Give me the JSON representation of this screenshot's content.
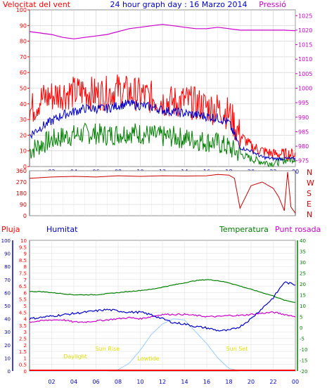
{
  "header": {
    "wind_label": "Velocitat del vent",
    "title": "24 hour graph day : 16 Marzo 2014",
    "pressure_label": "Pressió"
  },
  "lower_header": {
    "rain_label": "Pluja",
    "humidity_label": "Humitat",
    "temperature_label": "Temperatura",
    "dewpoint_label": "Punt rosada"
  },
  "colors": {
    "wind_gust": "#ff0000",
    "wind_avg": "#0000cc",
    "wind_min": "#008000",
    "pressure": "#cc00cc",
    "direction": "#cc0000",
    "humidity": "#0000cc",
    "temperature": "#008000",
    "dewpoint": "#cc00cc",
    "solar": "#99ccff",
    "rain": "#ff0000",
    "sun_labels": "#e0e000"
  },
  "chart_data": [
    {
      "type": "line",
      "name": "wind_pressure",
      "x_ticks": [
        "02",
        "04",
        "06",
        "08",
        "10",
        "12",
        "14",
        "16",
        "18",
        "20",
        "22",
        "00"
      ],
      "y_left_ticks": [
        "0",
        "10",
        "20",
        "30",
        "40",
        "50",
        "60",
        "70",
        "80",
        "90",
        "100"
      ],
      "y_left_range": [
        0,
        100
      ],
      "y_right_ticks": [
        "975",
        "980",
        "985",
        "990",
        "995",
        "1000",
        "1005",
        "1010",
        "1015",
        "1020",
        "1025"
      ],
      "y_right_range": [
        973,
        1027
      ],
      "grid": true,
      "x_hours": [
        0,
        1,
        2,
        3,
        4,
        5,
        6,
        7,
        8,
        9,
        10,
        11,
        12,
        13,
        14,
        15,
        16,
        17,
        18,
        19,
        20,
        21,
        22,
        23,
        24
      ],
      "series": [
        {
          "key": "gust",
          "values": [
            35,
            43,
            45,
            47,
            47,
            48,
            46,
            47,
            49,
            47,
            46,
            44,
            42,
            41,
            42,
            40,
            38,
            37,
            34,
            20,
            13,
            10,
            8,
            8,
            8
          ]
        },
        {
          "key": "average",
          "values": [
            20,
            25,
            29,
            33,
            35,
            37,
            37,
            37,
            39,
            40,
            39,
            38,
            36,
            35,
            34,
            33,
            32,
            31,
            28,
            12,
            10,
            6,
            5,
            5,
            5
          ]
        },
        {
          "key": "minimum",
          "values": [
            10,
            14,
            17,
            19,
            20,
            21,
            21,
            20,
            21,
            22,
            21,
            20,
            19,
            19,
            18,
            17,
            16,
            15,
            12,
            8,
            5,
            3,
            2,
            4,
            5
          ]
        },
        {
          "key": "pressure",
          "values": [
            1019.5,
            1019,
            1018.5,
            1017.5,
            1017,
            1017.5,
            1018,
            1018.5,
            1019.5,
            1020.5,
            1021,
            1021.5,
            1022,
            1021.5,
            1021,
            1020.5,
            1020.5,
            1021,
            1020.5,
            1020,
            1020,
            1020,
            1020,
            1020,
            1019.8
          ]
        }
      ]
    },
    {
      "type": "line",
      "name": "wind_direction",
      "y_ticks": [
        "0",
        "90",
        "180",
        "270",
        "360"
      ],
      "y_range": [
        0,
        360
      ],
      "compass_labels": [
        "N",
        "W",
        "S",
        "E",
        "N"
      ],
      "x_hours": [
        0,
        2,
        4,
        6,
        8,
        10,
        12,
        14,
        16,
        17,
        18,
        18.5,
        19,
        20,
        21,
        22,
        22.5,
        23,
        23.3,
        23.6,
        24
      ],
      "series": [
        {
          "key": "direction",
          "values": [
            300,
            310,
            315,
            310,
            320,
            315,
            320,
            318,
            320,
            330,
            325,
            300,
            60,
            240,
            270,
            220,
            150,
            40,
            350,
            70,
            20
          ]
        }
      ]
    },
    {
      "type": "line",
      "name": "humidity_temperature",
      "y_rain_ticks": [
        "0",
        "0.5",
        "1",
        "1.5",
        "2",
        "2.5",
        "3",
        "3.5",
        "4",
        "4.5",
        "5",
        "5.5",
        "6",
        "6.5",
        "7",
        "7.5",
        "8",
        "8.5",
        "9",
        "9.5",
        "10"
      ],
      "y_rain_range": [
        0,
        10
      ],
      "y_humidity_ticks": [
        "0",
        "10",
        "20",
        "30",
        "40",
        "50",
        "60",
        "70",
        "80",
        "90",
        "100"
      ],
      "y_humidity_range": [
        0,
        100
      ],
      "y_temp_ticks": [
        "-20",
        "-15",
        "-10",
        "-5",
        "0",
        "5",
        "10",
        "15",
        "20",
        "25",
        "30",
        "35",
        "40"
      ],
      "y_temp_range": [
        -20,
        40
      ],
      "sun_labels": {
        "sunrise": "Sun Rise",
        "sunset": "Sun Set",
        "daylight": "Daylight",
        "lowtide": "Lowtide"
      },
      "x_hours": [
        0,
        1,
        2,
        3,
        4,
        5,
        6,
        7,
        8,
        9,
        10,
        11,
        12,
        13,
        14,
        15,
        16,
        17,
        18,
        19,
        20,
        21,
        22,
        23,
        24
      ],
      "series": [
        {
          "key": "humidity",
          "values": [
            40,
            41,
            42,
            43,
            44,
            45,
            46,
            47,
            46,
            45,
            45,
            43,
            40,
            37,
            36,
            34,
            33,
            31,
            31,
            34,
            40,
            48,
            56,
            68,
            66
          ]
        },
        {
          "key": "temperature",
          "values": [
            16.5,
            16.5,
            16,
            15.5,
            15,
            15,
            15,
            15.5,
            16,
            16.5,
            17,
            17.5,
            18.5,
            19.5,
            20.5,
            21.5,
            22,
            21.5,
            20.5,
            19,
            17.5,
            16,
            14.5,
            12.5,
            11.5
          ]
        },
        {
          "key": "dewpoint",
          "values": [
            2.5,
            3,
            3.5,
            3.5,
            2.5,
            2.5,
            3,
            3.5,
            4,
            4.5,
            4,
            5,
            6,
            6,
            6,
            5.5,
            5,
            5,
            5.5,
            5.5,
            6,
            6.5,
            7,
            6,
            5
          ]
        },
        {
          "key": "solar",
          "values": [
            0,
            0,
            0,
            0,
            0,
            0,
            0,
            0,
            1,
            6,
            16,
            28,
            36,
            40,
            39,
            30,
            21,
            10,
            2,
            0,
            0,
            0,
            0,
            0,
            0
          ]
        },
        {
          "key": "rain",
          "values": [
            0,
            0,
            0,
            0,
            0,
            0,
            0,
            0,
            0,
            0,
            0,
            0,
            0,
            0,
            0,
            0,
            0,
            0,
            0,
            0,
            0,
            0,
            0,
            0,
            0
          ]
        }
      ]
    }
  ]
}
